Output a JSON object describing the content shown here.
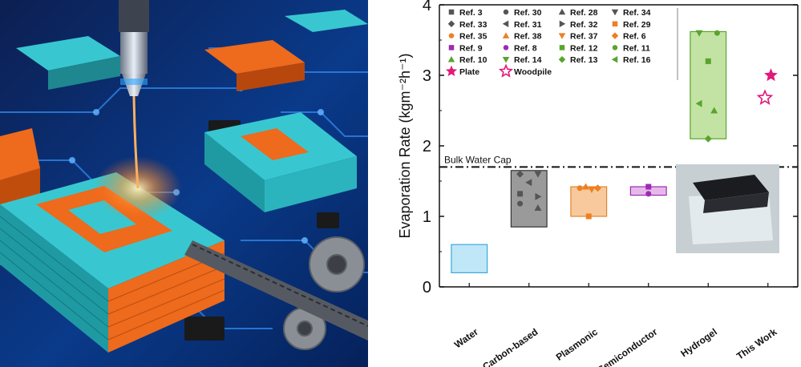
{
  "colors": {
    "board_bg": "#0a2a6e",
    "trace": "#2f86e8",
    "teal": "#38c7d0",
    "orange": "#ee6a1c",
    "plasma": "#ff9a3a"
  },
  "chart_data": {
    "type": "scatter",
    "ylabel": "Evaporation Rate (kgm⁻²h⁻¹)",
    "ylim": [
      0,
      4
    ],
    "yticks": [
      0,
      1,
      2,
      3,
      4
    ],
    "categories": [
      "Water",
      "Carbon-based",
      "Plasmonic",
      "Semiconductor",
      "Hydrogel",
      "This Work"
    ],
    "boxes": [
      {
        "category": "Water",
        "low": 0.2,
        "high": 0.6,
        "fill": "#bfe7f7",
        "stroke": "#39a9d9"
      },
      {
        "category": "Carbon-based",
        "low": 0.85,
        "high": 1.65,
        "fill": "#9a9a9a",
        "stroke": "#333333"
      },
      {
        "category": "Plasmonic",
        "low": 1.0,
        "high": 1.42,
        "fill": "#f7c99c",
        "stroke": "#e2852b"
      },
      {
        "category": "Semiconductor",
        "low": 1.3,
        "high": 1.42,
        "fill": "#e6b8ea",
        "stroke": "#9b2cb0"
      },
      {
        "category": "Hydrogel",
        "low": 2.1,
        "high": 3.62,
        "fill": "#c3e3a4",
        "stroke": "#5aa42c"
      }
    ],
    "points": [
      {
        "ref": "Ref. 3",
        "category": "Carbon-based",
        "y": 1.32,
        "xo": -0.15,
        "marker": "square",
        "color": "#555555"
      },
      {
        "ref": "Ref. 33",
        "category": "Carbon-based",
        "y": 1.6,
        "xo": -0.15,
        "marker": "diamond",
        "color": "#555555"
      },
      {
        "ref": "Ref. 30",
        "category": "Carbon-based",
        "y": 1.18,
        "xo": -0.15,
        "marker": "circle",
        "color": "#555555"
      },
      {
        "ref": "Ref. 31",
        "category": "Carbon-based",
        "y": 1.48,
        "xo": 0.0,
        "marker": "left",
        "color": "#555555"
      },
      {
        "ref": "Ref. 28",
        "category": "Carbon-based",
        "y": 1.12,
        "xo": 0.15,
        "marker": "up",
        "color": "#555555"
      },
      {
        "ref": "Ref. 32",
        "category": "Carbon-based",
        "y": 1.28,
        "xo": 0.15,
        "marker": "right",
        "color": "#555555"
      },
      {
        "ref": "Ref. 34",
        "category": "Carbon-based",
        "y": 1.6,
        "xo": 0.15,
        "marker": "down",
        "color": "#555555"
      },
      {
        "ref": "Ref. 35",
        "category": "Plasmonic",
        "y": 1.4,
        "xo": -0.15,
        "marker": "circle",
        "color": "#ee7f22"
      },
      {
        "ref": "Ref. 38",
        "category": "Plasmonic",
        "y": 1.42,
        "xo": -0.05,
        "marker": "up",
        "color": "#ee7f22"
      },
      {
        "ref": "Ref. 37",
        "category": "Plasmonic",
        "y": 1.38,
        "xo": 0.05,
        "marker": "down",
        "color": "#ee7f22"
      },
      {
        "ref": "Ref. 6",
        "category": "Plasmonic",
        "y": 1.4,
        "xo": 0.15,
        "marker": "diamond",
        "color": "#ee7f22"
      },
      {
        "ref": "Ref. 29",
        "category": "Plasmonic",
        "y": 1.0,
        "xo": 0.0,
        "marker": "square",
        "color": "#ee7f22"
      },
      {
        "ref": "Ref. 9",
        "category": "Semiconductor",
        "y": 1.42,
        "xo": 0.0,
        "marker": "square",
        "color": "#9b2cb0"
      },
      {
        "ref": "Ref. 8",
        "category": "Semiconductor",
        "y": 1.32,
        "xo": 0.0,
        "marker": "circle",
        "color": "#9b2cb0"
      },
      {
        "ref": "Ref. 14",
        "category": "Hydrogel",
        "y": 3.6,
        "xo": -0.15,
        "marker": "down",
        "color": "#5aa42c"
      },
      {
        "ref": "Ref. 11",
        "category": "Hydrogel",
        "y": 3.6,
        "xo": 0.15,
        "marker": "circle",
        "color": "#5aa42c"
      },
      {
        "ref": "Ref. 12",
        "category": "Hydrogel",
        "y": 3.2,
        "xo": 0.0,
        "marker": "square",
        "color": "#5aa42c"
      },
      {
        "ref": "Ref. 16",
        "category": "Hydrogel",
        "y": 2.6,
        "xo": -0.15,
        "marker": "left",
        "color": "#5aa42c"
      },
      {
        "ref": "Ref. 10",
        "category": "Hydrogel",
        "y": 2.5,
        "xo": 0.1,
        "marker": "up",
        "color": "#5aa42c"
      },
      {
        "ref": "Ref. 13",
        "category": "Hydrogel",
        "y": 2.1,
        "xo": 0.0,
        "marker": "diamond",
        "color": "#5aa42c"
      },
      {
        "ref": "Plate",
        "category": "This Work",
        "y": 3.0,
        "xo": 0.05,
        "marker": "star",
        "color": "#e0197a"
      },
      {
        "ref": "Woodpile",
        "category": "This Work",
        "y": 2.68,
        "xo": -0.05,
        "marker": "star-open",
        "color": "#e0197a"
      }
    ],
    "legend": [
      [
        "Ref. 3",
        "Ref. 30",
        "Ref. 28",
        "Ref. 34"
      ],
      [
        "Ref. 33",
        "Ref. 31",
        "Ref. 32",
        "Ref. 29"
      ],
      [
        "Ref. 35",
        "Ref. 38",
        "Ref. 37",
        "Ref. 6"
      ],
      [
        "Ref. 9",
        "Ref. 8",
        "Ref. 12",
        "Ref. 11"
      ],
      [
        "Ref. 10",
        "Ref. 14",
        "Ref. 13",
        "Ref. 16"
      ],
      [
        "Plate",
        "Woodpile"
      ]
    ],
    "reference_line": {
      "label": "Bulk Water Cap",
      "y": 1.7
    }
  }
}
